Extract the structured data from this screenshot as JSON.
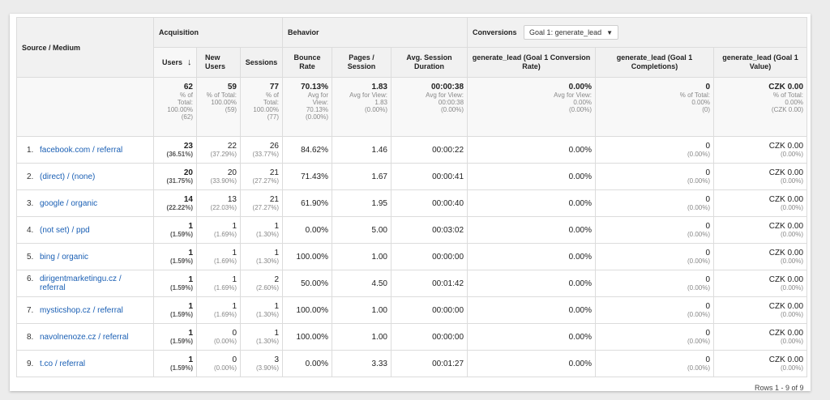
{
  "headers": {
    "source_medium": "Source / Medium",
    "acquisition": "Acquisition",
    "behavior": "Behavior",
    "conversions": "Conversions",
    "goal_select": "Goal 1: generate_lead",
    "users": "Users",
    "new_users": "New Users",
    "sessions": "Sessions",
    "bounce_rate": "Bounce Rate",
    "pages_session": "Pages / Session",
    "avg_session_duration": "Avg. Session Duration",
    "conv_rate": "generate_lead (Goal 1 Conversion Rate)",
    "completions": "generate_lead (Goal 1 Completions)",
    "value": "generate_lead (Goal 1 Value)"
  },
  "totals": {
    "users": {
      "value": "62",
      "l1": "% of",
      "l2": "Total:",
      "l3": "100.00%",
      "l4": "(62)"
    },
    "new_users": {
      "value": "59",
      "l1": "% of Total:",
      "l2": "100.00%",
      "l3": "(59)",
      "l4": ""
    },
    "sessions": {
      "value": "77",
      "l1": "% of",
      "l2": "Total:",
      "l3": "100.00%",
      "l4": "(77)"
    },
    "bounce_rate": {
      "value": "70.13%",
      "l1": "Avg for",
      "l2": "View:",
      "l3": "70.13%",
      "l4": "(0.00%)"
    },
    "pages_session": {
      "value": "1.83",
      "l1": "Avg for View:",
      "l2": "1.83",
      "l3": "(0.00%)",
      "l4": ""
    },
    "avg_session_duration": {
      "value": "00:00:38",
      "l1": "Avg for View:",
      "l2": "00:00:38",
      "l3": "(0.00%)",
      "l4": ""
    },
    "conv_rate": {
      "value": "0.00%",
      "l1": "Avg for View:",
      "l2": "0.00%",
      "l3": "(0.00%)",
      "l4": ""
    },
    "completions": {
      "value": "0",
      "l1": "% of Total:",
      "l2": "0.00%",
      "l3": "(0)",
      "l4": ""
    },
    "value": {
      "value": "CZK 0.00",
      "l1": "% of Total:",
      "l2": "0.00%",
      "l3": "(CZK 0.00)",
      "l4": ""
    }
  },
  "rows": [
    {
      "idx": "1.",
      "src": "facebook.com / referral",
      "users": "23",
      "users_pct": "(36.51%)",
      "new_users": "22",
      "new_users_pct": "(37.29%)",
      "sessions": "26",
      "sessions_pct": "(33.77%)",
      "bounce": "84.62%",
      "pages": "1.46",
      "duration": "00:00:22",
      "conv_rate": "0.00%",
      "completions": "0",
      "completions_pct": "(0.00%)",
      "value": "CZK 0.00",
      "value_pct": "(0.00%)"
    },
    {
      "idx": "2.",
      "src": "(direct) / (none)",
      "users": "20",
      "users_pct": "(31.75%)",
      "new_users": "20",
      "new_users_pct": "(33.90%)",
      "sessions": "21",
      "sessions_pct": "(27.27%)",
      "bounce": "71.43%",
      "pages": "1.67",
      "duration": "00:00:41",
      "conv_rate": "0.00%",
      "completions": "0",
      "completions_pct": "(0.00%)",
      "value": "CZK 0.00",
      "value_pct": "(0.00%)"
    },
    {
      "idx": "3.",
      "src": "google / organic",
      "users": "14",
      "users_pct": "(22.22%)",
      "new_users": "13",
      "new_users_pct": "(22.03%)",
      "sessions": "21",
      "sessions_pct": "(27.27%)",
      "bounce": "61.90%",
      "pages": "1.95",
      "duration": "00:00:40",
      "conv_rate": "0.00%",
      "completions": "0",
      "completions_pct": "(0.00%)",
      "value": "CZK 0.00",
      "value_pct": "(0.00%)"
    },
    {
      "idx": "4.",
      "src": "(not set) / ppd",
      "users": "1",
      "users_pct": "(1.59%)",
      "new_users": "1",
      "new_users_pct": "(1.69%)",
      "sessions": "1",
      "sessions_pct": "(1.30%)",
      "bounce": "0.00%",
      "pages": "5.00",
      "duration": "00:03:02",
      "conv_rate": "0.00%",
      "completions": "0",
      "completions_pct": "(0.00%)",
      "value": "CZK 0.00",
      "value_pct": "(0.00%)"
    },
    {
      "idx": "5.",
      "src": "bing / organic",
      "users": "1",
      "users_pct": "(1.59%)",
      "new_users": "1",
      "new_users_pct": "(1.69%)",
      "sessions": "1",
      "sessions_pct": "(1.30%)",
      "bounce": "100.00%",
      "pages": "1.00",
      "duration": "00:00:00",
      "conv_rate": "0.00%",
      "completions": "0",
      "completions_pct": "(0.00%)",
      "value": "CZK 0.00",
      "value_pct": "(0.00%)"
    },
    {
      "idx": "6.",
      "src": "dirigentmarketingu.cz / referral",
      "users": "1",
      "users_pct": "(1.59%)",
      "new_users": "1",
      "new_users_pct": "(1.69%)",
      "sessions": "2",
      "sessions_pct": "(2.60%)",
      "bounce": "50.00%",
      "pages": "4.50",
      "duration": "00:01:42",
      "conv_rate": "0.00%",
      "completions": "0",
      "completions_pct": "(0.00%)",
      "value": "CZK 0.00",
      "value_pct": "(0.00%)"
    },
    {
      "idx": "7.",
      "src": "mysticshop.cz / referral",
      "users": "1",
      "users_pct": "(1.59%)",
      "new_users": "1",
      "new_users_pct": "(1.69%)",
      "sessions": "1",
      "sessions_pct": "(1.30%)",
      "bounce": "100.00%",
      "pages": "1.00",
      "duration": "00:00:00",
      "conv_rate": "0.00%",
      "completions": "0",
      "completions_pct": "(0.00%)",
      "value": "CZK 0.00",
      "value_pct": "(0.00%)"
    },
    {
      "idx": "8.",
      "src": "navolnenoze.cz / referral",
      "users": "1",
      "users_pct": "(1.59%)",
      "new_users": "0",
      "new_users_pct": "(0.00%)",
      "sessions": "1",
      "sessions_pct": "(1.30%)",
      "bounce": "100.00%",
      "pages": "1.00",
      "duration": "00:00:00",
      "conv_rate": "0.00%",
      "completions": "0",
      "completions_pct": "(0.00%)",
      "value": "CZK 0.00",
      "value_pct": "(0.00%)"
    },
    {
      "idx": "9.",
      "src": "t.co / referral",
      "users": "1",
      "users_pct": "(1.59%)",
      "new_users": "0",
      "new_users_pct": "(0.00%)",
      "sessions": "3",
      "sessions_pct": "(3.90%)",
      "bounce": "0.00%",
      "pages": "3.33",
      "duration": "00:01:27",
      "conv_rate": "0.00%",
      "completions": "0",
      "completions_pct": "(0.00%)",
      "value": "CZK 0.00",
      "value_pct": "(0.00%)"
    }
  ],
  "footer": {
    "rows_label": "Rows 1 - 9 of 9"
  },
  "icons": {
    "sort": "sort-down-arrow-icon",
    "dropdown": "caret-down-icon"
  }
}
